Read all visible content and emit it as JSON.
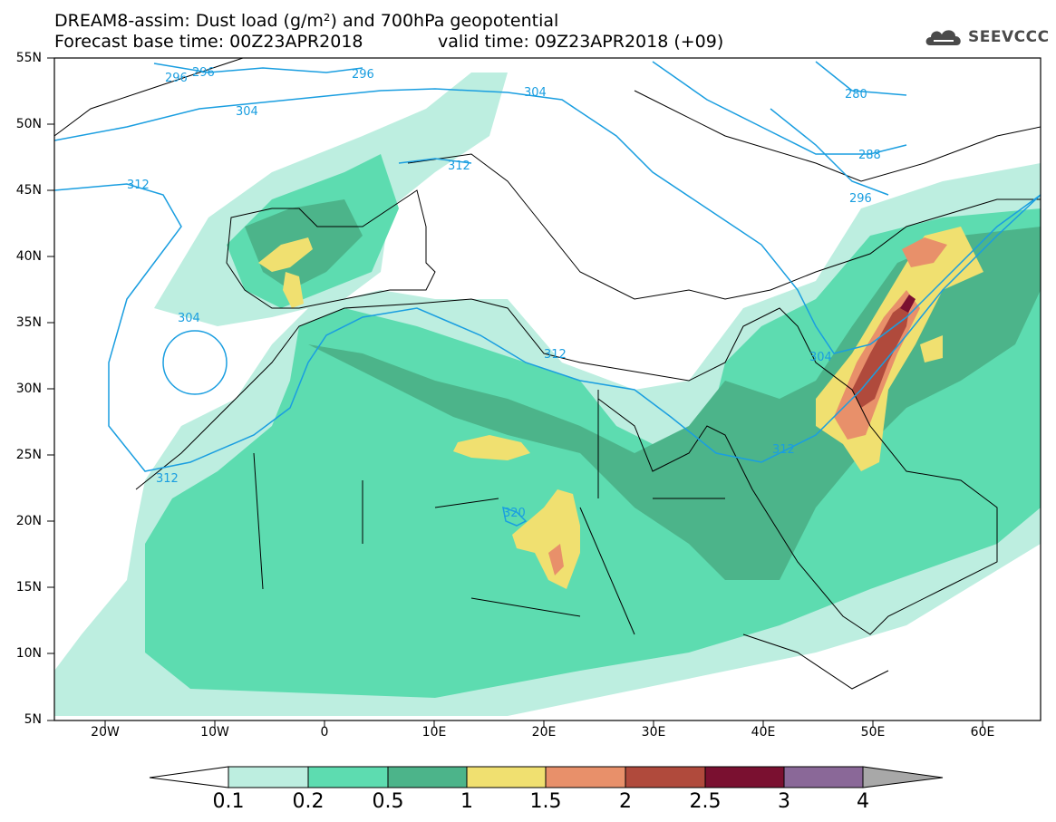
{
  "title": {
    "line1": "DREAM8-assim: Dust load (g/m²) and 700hPa geopotential",
    "line2": "Forecast base time: 00Z23APR2018",
    "valid": "valid time: 09Z23APR2018 (+09)"
  },
  "logo": {
    "text": "SEEVCCC",
    "icon": "cloud-logo-icon"
  },
  "axes": {
    "y_labels": [
      "55N",
      "50N",
      "45N",
      "40N",
      "35N",
      "30N",
      "25N",
      "20N",
      "15N",
      "10N",
      "5N"
    ],
    "x_labels": [
      "20W",
      "10W",
      "0",
      "10E",
      "20E",
      "30E",
      "40E",
      "50E",
      "60E"
    ],
    "lon_range": [
      -25,
      65
    ],
    "lat_range": [
      5,
      55
    ]
  },
  "colorbar": {
    "labels": [
      "0.1",
      "0.2",
      "0.5",
      "1",
      "1.5",
      "2",
      "2.5",
      "3",
      "4"
    ],
    "colors": [
      "#bdeee0",
      "#5ddcb0",
      "#4cb48a",
      "#f0e070",
      "#e8906a",
      "#b04a3c",
      "#7a1030",
      "#8a6898"
    ],
    "under_color": "#ffffff",
    "over_color": "#a8a8a8"
  },
  "contours": {
    "labels": [
      "296",
      "296",
      "296",
      "304",
      "304",
      "280",
      "288",
      "296",
      "312",
      "312",
      "304",
      "312",
      "312",
      "304",
      "312",
      "320"
    ],
    "color": "#1a9ee0"
  }
}
